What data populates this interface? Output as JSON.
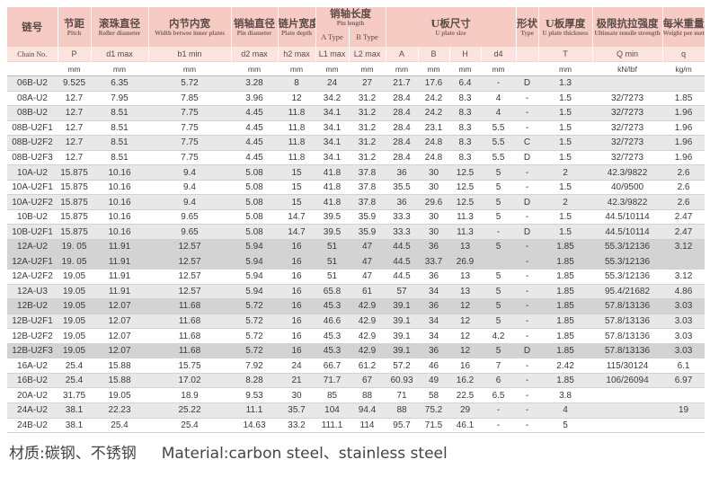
{
  "headers": {
    "chain_no_zh": "链号",
    "chain_no_en": "Chain No.",
    "pitch_zh": "节距",
    "pitch_en": "Pitch",
    "roller_zh": "滚珠直径",
    "roller_en": "Roller diameter",
    "width_zh": "内节内宽",
    "width_en": "Width betwee inner plates",
    "pin_zh": "销轴直径",
    "pin_en": "Pin diameter",
    "plate_zh": "链片宽度",
    "plate_en": "Plate depth",
    "pinlen_zh": "销轴长度",
    "pinlen_en": "Pin length",
    "atype": "A Type",
    "btype": "B Type",
    "uplate_zh": "U板尺寸",
    "uplate_en": "U plate size",
    "shape_zh": "形状",
    "shape_en": "Type",
    "thick_zh": "U板厚度",
    "thick_en": "U plate thickness",
    "tensile_zh": "极限抗拉强度",
    "tensile_en": "Ultimate tensile strength",
    "weight_zh": "每米重量",
    "weight_en": "Weight per meter",
    "sym": [
      "P",
      "d1 max",
      "b1 min",
      "d2 max",
      "h2 max",
      "L1 max",
      "L2 max",
      "A",
      "B",
      "H",
      "d4",
      "",
      "T",
      "Q min",
      "q"
    ],
    "units": [
      "mm",
      "mm",
      "mm",
      "mm",
      "mm",
      "mm",
      "mm",
      "mm",
      "mm",
      "mm",
      "mm",
      "",
      "mm",
      "kN/lbf",
      "kg/m"
    ]
  },
  "rows": [
    [
      "06B-U2",
      "9.525",
      "6.35",
      "5.72",
      "3.28",
      "8",
      "24",
      "27",
      "21.7",
      "17.6",
      "6.4",
      "-",
      "D",
      "1.3",
      "",
      ""
    ],
    [
      "08A-U2",
      "12.7",
      "7.95",
      "7.85",
      "3.96",
      "12",
      "34.2",
      "31.2",
      "28.4",
      "24.2",
      "8.3",
      "4",
      "-",
      "1.5",
      "32/7273",
      "1.85"
    ],
    [
      "08B-U2",
      "12.7",
      "8.51",
      "7.75",
      "4.45",
      "11.8",
      "34.1",
      "31.2",
      "28.4",
      "24.2",
      "8.3",
      "4",
      "-",
      "1.5",
      "32/7273",
      "1.96"
    ],
    [
      "08B-U2F1",
      "12.7",
      "8.51",
      "7.75",
      "4.45",
      "11.8",
      "34.1",
      "31.2",
      "28.4",
      "23.1",
      "8.3",
      "5.5",
      "-",
      "1.5",
      "32/7273",
      "1.96"
    ],
    [
      "08B-U2F2",
      "12.7",
      "8.51",
      "7.75",
      "4.45",
      "11.8",
      "34.1",
      "31.2",
      "28.4",
      "24.8",
      "8.3",
      "5.5",
      "C",
      "1.5",
      "32/7273",
      "1.96"
    ],
    [
      "08B-U2F3",
      "12.7",
      "8.51",
      "7.75",
      "4.45",
      "11.8",
      "34.1",
      "31.2",
      "28.4",
      "24.8",
      "8.3",
      "5.5",
      "D",
      "1.5",
      "32/7273",
      "1.96"
    ],
    [
      "10A-U2",
      "15.875",
      "10.16",
      "9.4",
      "5.08",
      "15",
      "41.8",
      "37.8",
      "36",
      "30",
      "12.5",
      "5",
      "-",
      "2",
      "42.3/9822",
      "2.6"
    ],
    [
      "10A-U2F1",
      "15.875",
      "10.16",
      "9.4",
      "5.08",
      "15",
      "41.8",
      "37.8",
      "35.5",
      "30",
      "12.5",
      "5",
      "-",
      "1.5",
      "40/9500",
      "2.6"
    ],
    [
      "10A-U2F2",
      "15.875",
      "10.16",
      "9.4",
      "5.08",
      "15",
      "41.8",
      "37.8",
      "36",
      "29.6",
      "12.5",
      "5",
      "D",
      "2",
      "42.3/9822",
      "2.6"
    ],
    [
      "10B-U2",
      "15.875",
      "10.16",
      "9.65",
      "5.08",
      "14.7",
      "39.5",
      "35.9",
      "33.3",
      "30",
      "11.3",
      "5",
      "-",
      "1.5",
      "44.5/10114",
      "2.47"
    ],
    [
      "10B-U2F1",
      "15.875",
      "10.16",
      "9.65",
      "5.08",
      "14.7",
      "39.5",
      "35.9",
      "33.3",
      "30",
      "11.3",
      "-",
      "D",
      "1.5",
      "44.5/10114",
      "2.47"
    ],
    [
      "12A-U2",
      "19. 05",
      "11.91",
      "12.57",
      "5.94",
      "16",
      "51",
      "47",
      "44.5",
      "36",
      "13",
      "5",
      "-",
      "1.85",
      "55.3/12136",
      "3.12"
    ],
    [
      "12A-U2F1",
      "19. 05",
      "11.91",
      "12.57",
      "5.94",
      "16",
      "51",
      "47",
      "44.5",
      "33.7",
      "26.9",
      "",
      "-",
      "1.85",
      "55.3/12136",
      ""
    ],
    [
      "12A-U2F2",
      "19.05",
      "11.91",
      "12.57",
      "5.94",
      "16",
      "51",
      "47",
      "44.5",
      "36",
      "13",
      "5",
      "-",
      "1.85",
      "55.3/12136",
      "3.12"
    ],
    [
      "12A-U3",
      "19.05",
      "11.91",
      "12.57",
      "5.94",
      "16",
      "65.8",
      "61",
      "57",
      "34",
      "13",
      "5",
      "-",
      "1.85",
      "95.4/21682",
      "4.86"
    ],
    [
      "12B-U2",
      "19.05",
      "12.07",
      "11.68",
      "5.72",
      "16",
      "45.3",
      "42.9",
      "39.1",
      "36",
      "12",
      "5",
      "-",
      "1.85",
      "57.8/13136",
      "3.03"
    ],
    [
      "12B-U2F1",
      "19.05",
      "12.07",
      "11.68",
      "5.72",
      "16",
      "46.6",
      "42.9",
      "39.1",
      "34",
      "12",
      "5",
      "-",
      "1.85",
      "57.8/13136",
      "3.03"
    ],
    [
      "12B-U2F2",
      "19.05",
      "12.07",
      "11.68",
      "5.72",
      "16",
      "45.3",
      "42.9",
      "39.1",
      "34",
      "12",
      "4.2",
      "-",
      "1.85",
      "57.8/13136",
      "3.03"
    ],
    [
      "12B-U2F3",
      "19.05",
      "12.07",
      "11.68",
      "5.72",
      "16",
      "45.3",
      "42.9",
      "39.1",
      "36",
      "12",
      "5",
      "D",
      "1.85",
      "57.8/13136",
      "3.03"
    ],
    [
      "16A-U2",
      "25.4",
      "15.88",
      "15.75",
      "7.92",
      "24",
      "66.7",
      "61.2",
      "57.2",
      "46",
      "16",
      "7",
      "-",
      "2.42",
      "115/30124",
      "6.1"
    ],
    [
      "16B-U2",
      "25.4",
      "15.88",
      "17.02",
      "8.28",
      "21",
      "71.7",
      "67",
      "60.93",
      "49",
      "16.2",
      "6",
      "-",
      "1.85",
      "106/26094",
      "6.97"
    ],
    [
      "20A-U2",
      "31.75",
      "19.05",
      "18.9",
      "9.53",
      "30",
      "85",
      "88",
      "71",
      "58",
      "22.5",
      "6.5",
      "-",
      "3.8",
      "",
      ""
    ],
    [
      "24A-U2",
      "38.1",
      "22.23",
      "25.22",
      "11.1",
      "35.7",
      "104",
      "94.4",
      "88",
      "75.2",
      "29",
      "-",
      "-",
      "4",
      "",
      "19"
    ],
    [
      "24B-U2",
      "38.1",
      "25.4",
      "25.4",
      "14.63",
      "33.2",
      "111.1",
      "114",
      "95.7",
      "71.5",
      "46.1",
      "-",
      "-",
      "5",
      "",
      ""
    ]
  ],
  "dark_rows": [
    11,
    12,
    15,
    18
  ],
  "material": {
    "zh": "材质:碳钢、不锈钢",
    "en": "Material:carbon steel、stainless steel"
  }
}
